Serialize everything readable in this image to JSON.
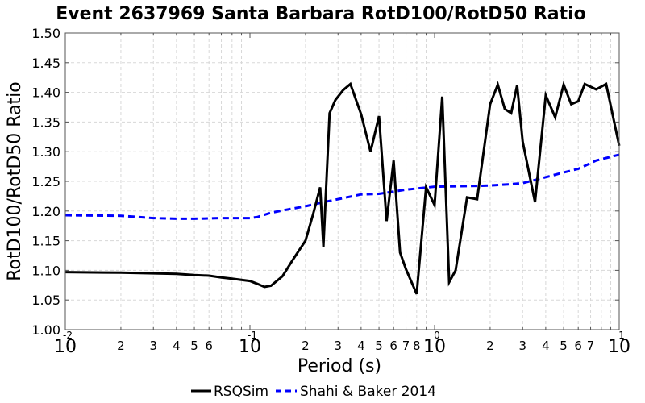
{
  "chart_data": {
    "type": "line",
    "title": "Event 2637969 Santa Barbara RotD100/RotD50 Ratio",
    "xlabel": "Period (s)",
    "ylabel": "RotD100/RotD50 Ratio",
    "x_scale": "log",
    "xlim": [
      0.01,
      10
    ],
    "ylim": [
      1.0,
      1.5
    ],
    "y_ticks": [
      "1.00",
      "1.05",
      "1.10",
      "1.15",
      "1.20",
      "1.25",
      "1.30",
      "1.35",
      "1.40",
      "1.45",
      "1.50"
    ],
    "x_major_ticks": [
      {
        "base": "10",
        "exp": "-2",
        "value": 0.01
      },
      {
        "base": "10",
        "exp": "-1",
        "value": 0.1
      },
      {
        "base": "10",
        "exp": "0",
        "value": 1
      },
      {
        "base": "10",
        "exp": "1",
        "value": 10
      }
    ],
    "x_minor_labels": [
      "2",
      "3",
      "4",
      "5",
      "6",
      "2",
      "3",
      "4",
      "5",
      "6",
      "7",
      "8",
      "2",
      "3",
      "4",
      "5",
      "6",
      "7",
      "2",
      "3",
      "4",
      "5",
      "6",
      "7"
    ],
    "x_minor_values": [
      0.02,
      0.03,
      0.04,
      0.05,
      0.06,
      0.2,
      0.3,
      0.4,
      0.5,
      0.6,
      0.7,
      0.8,
      2,
      3,
      4,
      5,
      6,
      7,
      20,
      30,
      40,
      50,
      60,
      70
    ],
    "grid": true,
    "legend_position": "bottom",
    "colors": {
      "rsqsim": "#000000",
      "shahi": "#0000ff",
      "grid": "#d8d8d8"
    },
    "series": [
      {
        "name": "RSQSim",
        "style": "solid",
        "x": [
          0.01,
          0.02,
          0.03,
          0.04,
          0.05,
          0.06,
          0.07,
          0.08,
          0.1,
          0.11,
          0.12,
          0.13,
          0.15,
          0.17,
          0.2,
          0.22,
          0.24,
          0.25,
          0.27,
          0.29,
          0.32,
          0.35,
          0.4,
          0.45,
          0.5,
          0.55,
          0.6,
          0.65,
          0.7,
          0.8,
          0.9,
          1.0,
          1.1,
          1.2,
          1.3,
          1.5,
          1.7,
          2.0,
          2.2,
          2.4,
          2.6,
          2.8,
          3.0,
          3.5,
          4.0,
          4.5,
          5.0,
          5.5,
          6.0,
          6.5,
          7.5,
          8.5,
          10.0
        ],
        "y": [
          1.097,
          1.096,
          1.095,
          1.094,
          1.092,
          1.091,
          1.088,
          1.086,
          1.082,
          1.077,
          1.072,
          1.074,
          1.09,
          1.117,
          1.15,
          1.195,
          1.24,
          1.14,
          1.365,
          1.387,
          1.404,
          1.414,
          1.363,
          1.3,
          1.36,
          1.183,
          1.285,
          1.13,
          1.102,
          1.06,
          1.24,
          1.21,
          1.393,
          1.08,
          1.1,
          1.223,
          1.22,
          1.38,
          1.413,
          1.372,
          1.365,
          1.412,
          1.317,
          1.215,
          1.395,
          1.358,
          1.413,
          1.38,
          1.385,
          1.414,
          1.405,
          1.414,
          1.31
        ]
      },
      {
        "name": "Shahi & Baker 2014",
        "style": "dashed",
        "x": [
          0.01,
          0.02,
          0.03,
          0.04,
          0.05,
          0.07,
          0.1,
          0.11,
          0.13,
          0.15,
          0.2,
          0.25,
          0.3,
          0.4,
          0.5,
          0.7,
          1.0,
          1.5,
          2.0,
          2.5,
          3.0,
          4.0,
          5.0,
          6.0,
          7.5,
          10.0
        ],
        "y": [
          1.193,
          1.192,
          1.188,
          1.187,
          1.187,
          1.188,
          1.188,
          1.19,
          1.197,
          1.201,
          1.208,
          1.215,
          1.22,
          1.228,
          1.229,
          1.236,
          1.241,
          1.242,
          1.243,
          1.245,
          1.247,
          1.257,
          1.265,
          1.271,
          1.285,
          1.295
        ]
      }
    ]
  }
}
